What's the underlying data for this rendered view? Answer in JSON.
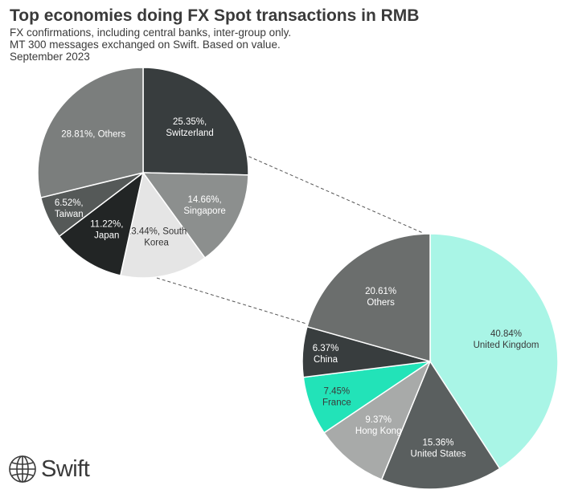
{
  "header": {
    "title": "Top economies doing FX Spot transactions in RMB",
    "subtitle_1": "FX confirmations, including central banks, inter-group only.",
    "subtitle_2": "MT 300 messages exchanged on Swift. Based on value.",
    "subtitle_3": "September 2023"
  },
  "logo": {
    "text": "Swift",
    "icon": "globe-icon"
  },
  "chart_data": [
    {
      "type": "pie",
      "title": "",
      "slices": [
        {
          "label": "Switzerland",
          "value": 25.35,
          "text": "25.35%,",
          "text2": "Switzerland",
          "color": "#383d3e",
          "text_color": "#ffffff"
        },
        {
          "label": "Singapore",
          "value": 14.66,
          "text": "14.66%,",
          "text2": "Singapore",
          "color": "#8c8f8e",
          "text_color": "#ffffff"
        },
        {
          "label": "South Korea",
          "value": 13.44,
          "text": "13.44%, South",
          "text2": "Korea",
          "color": "#e5e5e5",
          "text_color": "#333333"
        },
        {
          "label": "Japan",
          "value": 11.22,
          "text": "11.22%,",
          "text2": "Japan",
          "color": "#222525",
          "text_color": "#ffffff"
        },
        {
          "label": "Taiwan",
          "value": 6.52,
          "text": "6.52%,",
          "text2": "Taiwan",
          "color": "#555958",
          "text_color": "#ffffff"
        },
        {
          "label": "Others",
          "value": 28.81,
          "text": "28.81%, Others",
          "text2": "",
          "color": "#7b7e7d",
          "text_color": "#ffffff"
        }
      ]
    },
    {
      "type": "pie",
      "title": "",
      "slices": [
        {
          "label": "United Kingdom",
          "value": 40.84,
          "text": "40.84%",
          "text2": "United Kingdom",
          "color": "#a9f5e6",
          "text_color": "#3a3a3a"
        },
        {
          "label": "United States",
          "value": 15.36,
          "text": "15.36%",
          "text2": "United States",
          "color": "#5a5f5f",
          "text_color": "#ffffff"
        },
        {
          "label": "Hong Kong",
          "value": 9.37,
          "text": "9.37%",
          "text2": "Hong Kong",
          "color": "#a8aaa9",
          "text_color": "#ffffff"
        },
        {
          "label": "France",
          "value": 7.45,
          "text": "7.45%",
          "text2": "France",
          "color": "#22e3b8",
          "text_color": "#3a3a3a"
        },
        {
          "label": "China",
          "value": 6.37,
          "text": "6.37%",
          "text2": "China",
          "color": "#383d3e",
          "text_color": "#ffffff"
        },
        {
          "label": "Others",
          "value": 20.61,
          "text": "20.61%",
          "text2": "Others",
          "color": "#6b6e6d",
          "text_color": "#ffffff"
        }
      ]
    }
  ]
}
